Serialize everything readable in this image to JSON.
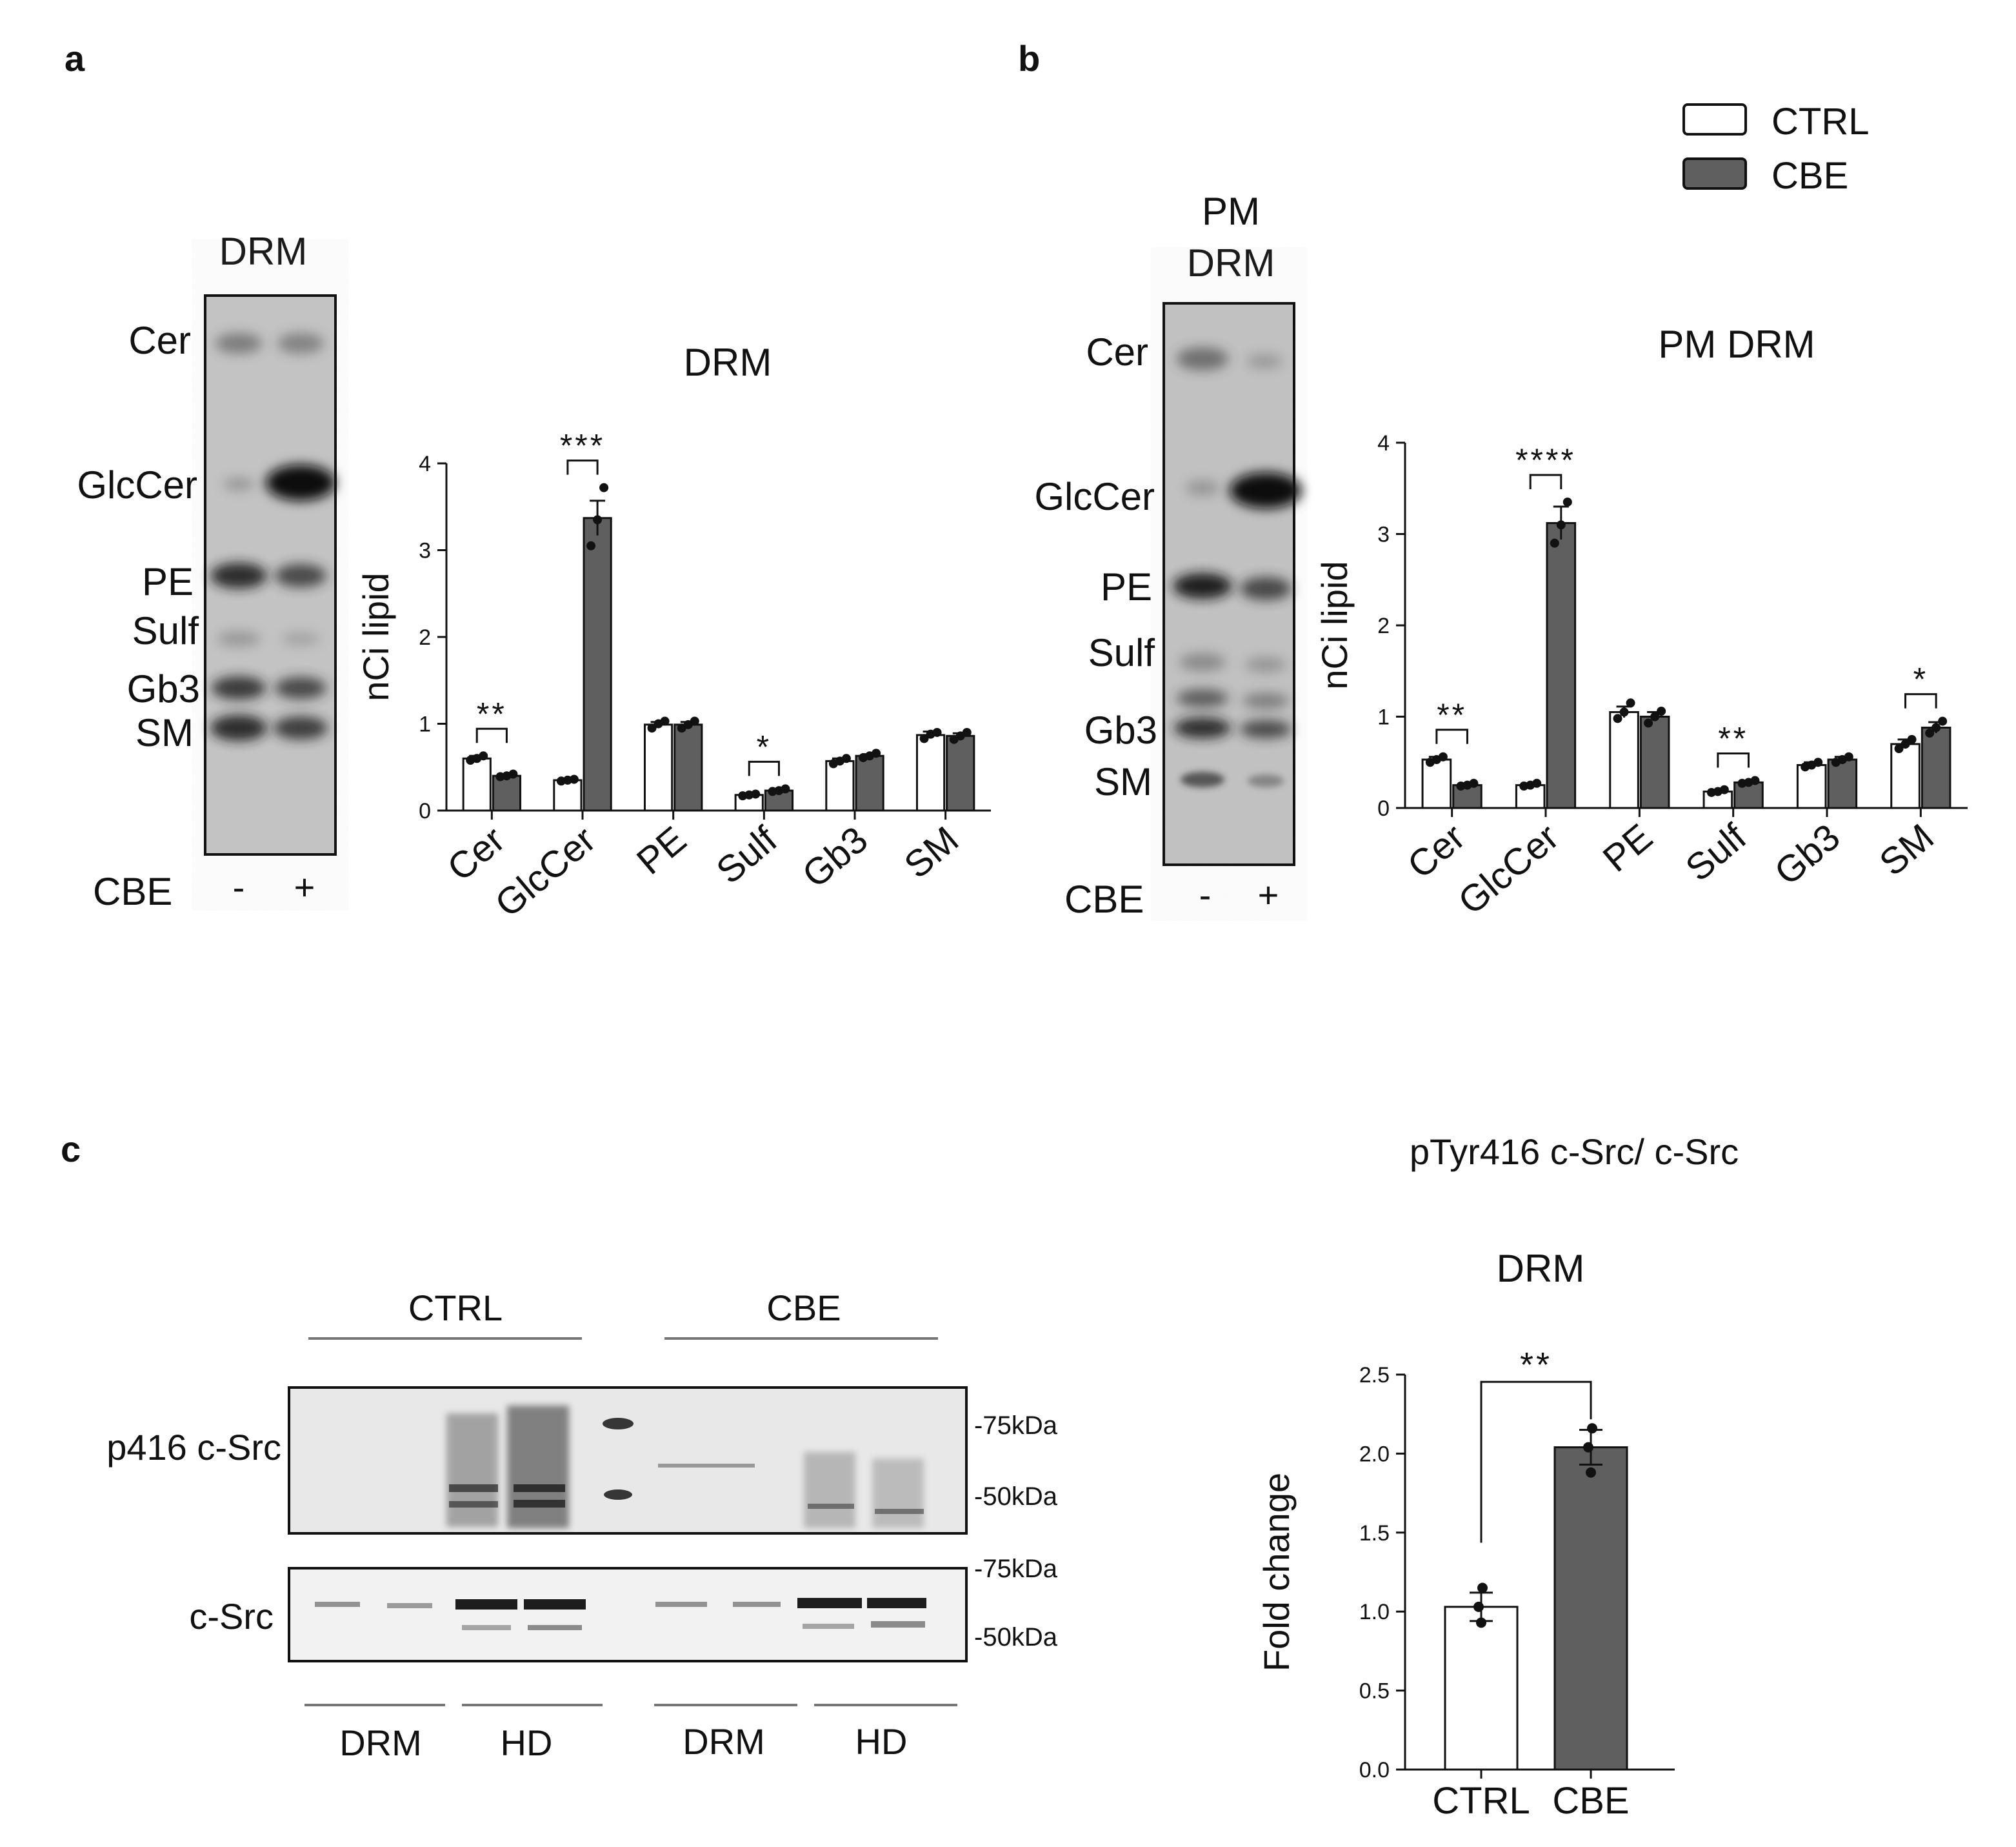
{
  "figure": {
    "panel_labels": [
      "a",
      "b",
      "c"
    ],
    "legend": [
      {
        "label": "CTRL",
        "color": "#ffffff"
      },
      {
        "label": "CBE",
        "color": "#5f5f5f"
      }
    ],
    "colors": {
      "ctrl": "#ffffff",
      "cbe": "#5f5f5f",
      "axis": "#111111"
    }
  },
  "panel_a": {
    "tlc_title": "DRM",
    "lipid_labels": [
      "Cer",
      "GlcCer",
      "PE",
      "Sulf",
      "Gb3",
      "SM"
    ],
    "cbe_label": "CBE",
    "lanes": [
      "-",
      "+"
    ]
  },
  "panel_b": {
    "tlc_title_line1": "PM",
    "tlc_title_line2": "DRM",
    "lipid_labels": [
      "Cer",
      "GlcCer",
      "PE",
      "Sulf",
      "Gb3",
      "SM"
    ],
    "cbe_label": "CBE",
    "lanes": [
      "-",
      "+"
    ]
  },
  "panel_c": {
    "group_labels": [
      "CTRL",
      "CBE"
    ],
    "row_labels": [
      "p416 c-Src",
      "c-Src"
    ],
    "markers": [
      "-75kDa",
      "-50kDa",
      "-75kDa",
      "-50kDa"
    ],
    "fraction_labels": [
      "DRM",
      "HD",
      "DRM",
      "HD"
    ],
    "chart_title": "pTyr416 c-Src/ c-Src"
  },
  "chart_data": [
    {
      "type": "bar",
      "title": "DRM",
      "xlabel": "",
      "ylabel": "nCi lipid",
      "categories": [
        "Cer",
        "GlcCer",
        "PE",
        "Sulf",
        "Gb3",
        "SM"
      ],
      "ylim": [
        0,
        4
      ],
      "yticks": [
        "0",
        "1",
        "2",
        "3",
        "4"
      ],
      "series": [
        {
          "name": "CTRL",
          "values": [
            0.6,
            0.35,
            0.99,
            0.18,
            0.57,
            0.87
          ],
          "errors": [
            0.03,
            0.02,
            0.03,
            0.02,
            0.03,
            0.04
          ],
          "points": [
            [
              0.58,
              0.6,
              0.63
            ],
            [
              0.34,
              0.35,
              0.36
            ],
            [
              0.95,
              1.0,
              1.03
            ],
            [
              0.17,
              0.18,
              0.19
            ],
            [
              0.54,
              0.57,
              0.6
            ],
            [
              0.83,
              0.88,
              0.9
            ]
          ]
        },
        {
          "name": "CBE",
          "values": [
            0.4,
            3.37,
            0.99,
            0.23,
            0.63,
            0.86
          ],
          "errors": [
            0.02,
            0.2,
            0.03,
            0.02,
            0.02,
            0.03
          ],
          "points": [
            [
              0.39,
              0.4,
              0.42
            ],
            [
              3.05,
              3.35,
              3.72
            ],
            [
              0.95,
              0.99,
              1.03
            ],
            [
              0.22,
              0.23,
              0.25
            ],
            [
              0.61,
              0.63,
              0.66
            ],
            [
              0.82,
              0.86,
              0.9
            ]
          ]
        }
      ],
      "significance": [
        {
          "category": "Cer",
          "label": "**"
        },
        {
          "category": "GlcCer",
          "label": "***"
        },
        {
          "category": "Sulf",
          "label": "*"
        }
      ]
    },
    {
      "type": "bar",
      "title": "PM DRM",
      "xlabel": "",
      "ylabel": "nCi lipid",
      "categories": [
        "Cer",
        "GlcCer",
        "PE",
        "Sulf",
        "Gb3",
        "SM"
      ],
      "ylim": [
        0,
        4
      ],
      "yticks": [
        "0",
        "1",
        "2",
        "3",
        "4"
      ],
      "series": [
        {
          "name": "CTRL",
          "values": [
            0.53,
            0.25,
            1.05,
            0.18,
            0.47,
            0.7
          ],
          "errors": [
            0.03,
            0.02,
            0.06,
            0.02,
            0.03,
            0.05
          ],
          "points": [
            [
              0.5,
              0.53,
              0.56
            ],
            [
              0.24,
              0.25,
              0.27
            ],
            [
              0.98,
              1.05,
              1.15
            ],
            [
              0.17,
              0.18,
              0.2
            ],
            [
              0.45,
              0.47,
              0.5
            ],
            [
              0.65,
              0.7,
              0.75
            ]
          ]
        },
        {
          "name": "CBE",
          "values": [
            0.25,
            3.12,
            1.0,
            0.28,
            0.53,
            0.88
          ],
          "errors": [
            0.02,
            0.18,
            0.05,
            0.02,
            0.03,
            0.06
          ],
          "points": [
            [
              0.24,
              0.25,
              0.27
            ],
            [
              2.9,
              3.1,
              3.35
            ],
            [
              0.93,
              1.0,
              1.06
            ],
            [
              0.27,
              0.28,
              0.3
            ],
            [
              0.5,
              0.53,
              0.56
            ],
            [
              0.82,
              0.88,
              0.95
            ]
          ]
        }
      ],
      "significance": [
        {
          "category": "Cer",
          "label": "**"
        },
        {
          "category": "GlcCer",
          "label": "****"
        },
        {
          "category": "Sulf",
          "label": "**"
        },
        {
          "category": "SM",
          "label": "*"
        }
      ]
    },
    {
      "type": "bar",
      "title": "DRM",
      "xlabel": "",
      "ylabel": "Fold change",
      "categories": [
        "CTRL",
        "CBE"
      ],
      "values": [
        1.03,
        2.04
      ],
      "errors": [
        0.09,
        0.11
      ],
      "points": [
        [
          0.93,
          1.03,
          1.15
        ],
        [
          1.88,
          2.04,
          2.16
        ]
      ],
      "ylim": [
        0,
        2.5
      ],
      "yticks": [
        "0.0",
        "0.5",
        "1.0",
        "1.5",
        "2.0",
        "2.5"
      ],
      "significance": [
        {
          "between": [
            "CTRL",
            "CBE"
          ],
          "label": "**"
        }
      ]
    }
  ]
}
